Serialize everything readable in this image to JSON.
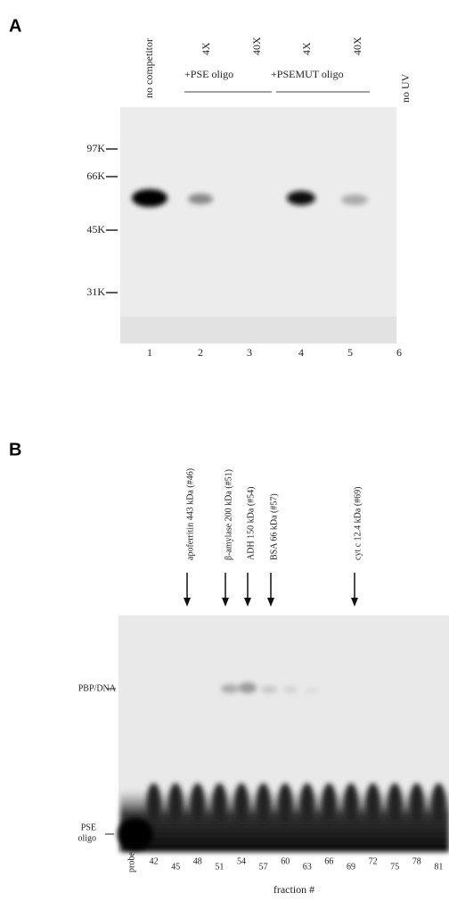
{
  "panel_a": {
    "label": "A",
    "lane_headers": {
      "no_competitor": "no competitor",
      "pse_4x": "4X",
      "pse_40x": "40X",
      "pse_group": "+PSE oligo",
      "mut_4x": "4X",
      "mut_40x": "40X",
      "mut_group": "+PSEMUT oligo",
      "no_uv": "no UV"
    },
    "markers": [
      "97K",
      "66K",
      "45K",
      "31K"
    ],
    "lanes": [
      "1",
      "2",
      "3",
      "4",
      "5",
      "6"
    ]
  },
  "panel_b": {
    "label": "B",
    "standards": [
      "apoferritin 443 kDa (#46)",
      "β-amylase 200 kDa (#51)",
      "ADH 150 kDa (#54)",
      "BSA 66 kDa (#57)",
      "cyt c 12.4 kDa (#69)"
    ],
    "complex_label": "PBP/DNA",
    "probe_label": [
      "PSE",
      "oligo"
    ],
    "fractions": [
      "probe",
      "42",
      "45",
      "48",
      "51",
      "54",
      "57",
      "60",
      "63",
      "66",
      "69",
      "72",
      "75",
      "78",
      "81"
    ],
    "x_label": "fraction #"
  }
}
